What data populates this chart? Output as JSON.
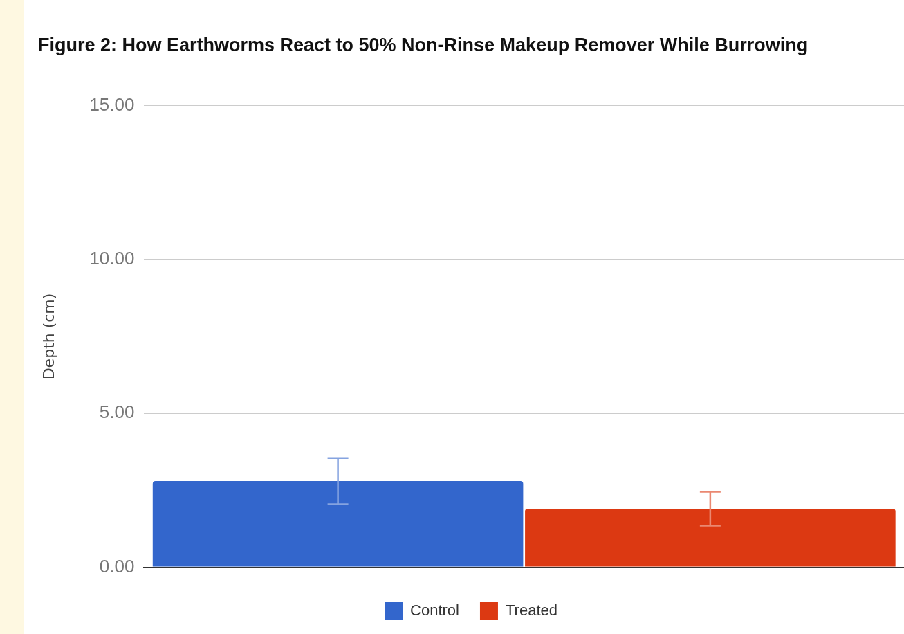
{
  "chart_data": {
    "type": "bar",
    "title": "Figure 2: How Earthworms React to 50% Non-Rinse Makeup Remover While Burrowing",
    "ylabel": "Depth (cm)",
    "categories": [
      null
    ],
    "series": [
      {
        "name": "Control",
        "color": "#3366cc",
        "values": [
          2.8
        ],
        "errors": [
          0.75
        ]
      },
      {
        "name": "Treated",
        "color": "#dc3912",
        "values": [
          1.9
        ],
        "errors": [
          0.55
        ]
      }
    ],
    "ylim": [
      0,
      15
    ],
    "yticks": [
      {
        "value": 0,
        "label": "0.00"
      },
      {
        "value": 5,
        "label": "5.00"
      },
      {
        "value": 10,
        "label": "10.00"
      },
      {
        "value": 15,
        "label": "15.00"
      }
    ],
    "grid": "y",
    "legend": "bottom"
  }
}
